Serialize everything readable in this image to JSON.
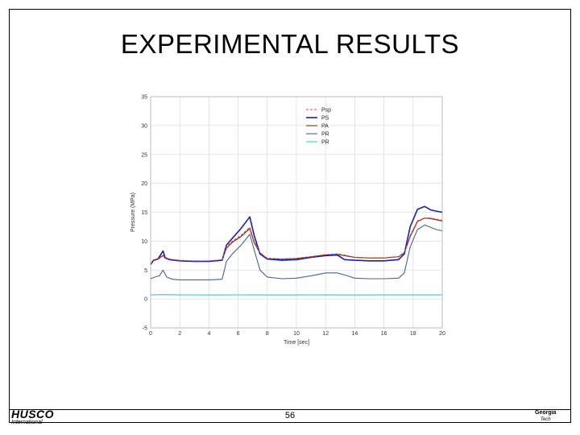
{
  "slide": {
    "title": "EXPERIMENTAL RESULTS",
    "page_number": "56",
    "logo_left_main": "HUSCO",
    "logo_left_sub": "International",
    "logo_right_line1": "Georgia",
    "logo_right_line2": "Tech"
  },
  "colors": {
    "Psp": "#e0463a",
    "PS": "#1a20a8",
    "PA": "#7a2a12",
    "PR": "#4b6390",
    "PR2": "#3cc8c8"
  },
  "chart_data": {
    "type": "line",
    "title": "",
    "xlabel": "Time [sec]",
    "ylabel": "Pressure (MPa)",
    "xlim": [
      0,
      20
    ],
    "ylim": [
      -5,
      35
    ],
    "xticks": [
      0,
      2,
      4,
      6,
      8,
      10,
      12,
      14,
      16,
      18,
      20
    ],
    "yticks": [
      -5,
      0,
      5,
      10,
      15,
      20,
      25,
      30,
      35
    ],
    "grid": true,
    "legend_position": "top-right",
    "series": [
      {
        "name": "Psp",
        "style": "dashed",
        "x": [
          0,
          0.2,
          0.5,
          0.85,
          1.0,
          1.3,
          2,
          3,
          4,
          4.9,
          5.2,
          5.6,
          6.2,
          6.8,
          7.1,
          7.5,
          8,
          9,
          10,
          11,
          12,
          12.8,
          13.3,
          14,
          15,
          16,
          17,
          17.4,
          17.8,
          18.3,
          18.8,
          19.2,
          19.6,
          20
        ],
        "y": [
          6,
          6.8,
          7,
          7.6,
          7.2,
          6.9,
          6.7,
          6.6,
          6.6,
          6.8,
          9,
          10,
          11,
          12.4,
          10,
          8,
          7,
          6.9,
          7,
          7.3,
          7.7,
          7.8,
          7.6,
          7.2,
          7.1,
          7.1,
          7.3,
          8,
          11,
          13.5,
          14,
          14,
          13.8,
          13.6
        ]
      },
      {
        "name": "PS",
        "style": "solid",
        "x": [
          0,
          0.2,
          0.5,
          0.85,
          1.0,
          1.3,
          2,
          3,
          4,
          4.9,
          5.2,
          5.6,
          6.2,
          6.8,
          7.1,
          7.5,
          8,
          9,
          10,
          11,
          12,
          12.8,
          13.3,
          14,
          15,
          16,
          17,
          17.4,
          17.8,
          18.3,
          18.8,
          19.2,
          19.6,
          20
        ],
        "y": [
          6,
          6.7,
          6.9,
          8.3,
          7.1,
          6.8,
          6.6,
          6.5,
          6.5,
          6.7,
          9.3,
          10.5,
          12.2,
          14.2,
          11,
          7.8,
          6.9,
          6.7,
          6.8,
          7.2,
          7.5,
          7.6,
          6.8,
          6.7,
          6.6,
          6.6,
          6.8,
          7.8,
          12.5,
          15.5,
          16,
          15.4,
          15.2,
          15
        ]
      },
      {
        "name": "PA",
        "style": "solid",
        "x": [
          0,
          0.2,
          0.5,
          0.85,
          1.0,
          1.3,
          2,
          3,
          4,
          4.9,
          5.2,
          5.6,
          6.2,
          6.8,
          7.1,
          7.5,
          8,
          9,
          10,
          11,
          12,
          12.8,
          13.3,
          14,
          15,
          16,
          17,
          17.4,
          17.8,
          18.3,
          18.8,
          19.2,
          19.6,
          20
        ],
        "y": [
          6,
          6.7,
          6.9,
          7.5,
          7.1,
          6.8,
          6.6,
          6.5,
          6.5,
          6.7,
          8.8,
          9.8,
          10.8,
          12.2,
          9.8,
          7.9,
          7,
          6.9,
          7,
          7.3,
          7.6,
          7.7,
          7.5,
          7.2,
          7.1,
          7.1,
          7.3,
          8,
          10.8,
          13.4,
          14,
          13.9,
          13.7,
          13.5
        ]
      },
      {
        "name": "PR",
        "style": "solid",
        "x": [
          0,
          0.3,
          0.6,
          0.85,
          1.1,
          1.5,
          2,
          3,
          4,
          4.9,
          5.2,
          5.6,
          6.2,
          6.8,
          7.1,
          7.5,
          8,
          9,
          10,
          11,
          12,
          12.8,
          13.5,
          14,
          15,
          16,
          17,
          17.4,
          17.8,
          18.3,
          18.8,
          19.2,
          19.6,
          20
        ],
        "y": [
          3.5,
          3.8,
          4,
          5,
          3.8,
          3.4,
          3.3,
          3.3,
          3.3,
          3.4,
          6.5,
          7.8,
          9.3,
          11.2,
          8.5,
          5,
          3.8,
          3.5,
          3.6,
          4,
          4.5,
          4.5,
          4,
          3.6,
          3.5,
          3.5,
          3.6,
          4.5,
          9,
          12,
          12.8,
          12.4,
          12,
          11.8
        ]
      },
      {
        "name": "PR",
        "style": "solid",
        "x": [
          0,
          1,
          2,
          3,
          4,
          5,
          6,
          7,
          8,
          9,
          10,
          11,
          12,
          13,
          14,
          15,
          16,
          17,
          18,
          19,
          20
        ],
        "y": [
          0.7,
          0.75,
          0.7,
          0.72,
          0.68,
          0.7,
          0.72,
          0.7,
          0.7,
          0.68,
          0.7,
          0.72,
          0.7,
          0.7,
          0.68,
          0.7,
          0.7,
          0.7,
          0.7,
          0.7,
          0.7
        ]
      }
    ]
  }
}
